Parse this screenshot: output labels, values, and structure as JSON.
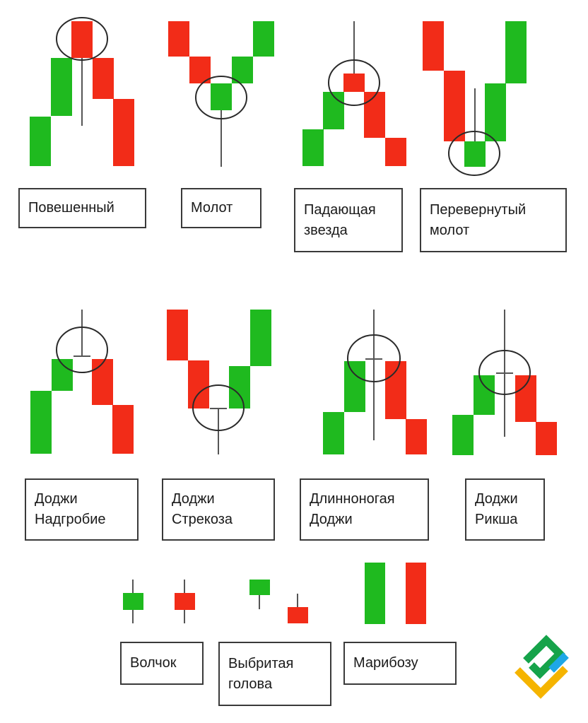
{
  "colors": {
    "bull": "#1fba1f",
    "bear": "#f22c18",
    "line": "#555555",
    "circle": "#2a2a2a",
    "logo_green": "#16a34a",
    "logo_yellow": "#f5b400",
    "logo_blue": "#1ea7e6"
  },
  "patterns": {
    "hanging_man": "Повешенный",
    "hammer": "Молот",
    "shooting_star": "Падающая\nзвезда",
    "inverted_hammer": "Перевернутый\nмолот",
    "gravestone_doji": "Доджи\nНадгробие",
    "dragonfly_doji": "Доджи\nСтрекоза",
    "long_legged_doji": "Длинноногая\nДоджи",
    "rickshaw_doji": "Доджи\nРикша",
    "spinning_top": "Волчок",
    "shaven_head": "Выбритая\nголова",
    "marubozu": "Марибозу"
  },
  "logo": {
    "icon": "brand-logo-icon"
  }
}
